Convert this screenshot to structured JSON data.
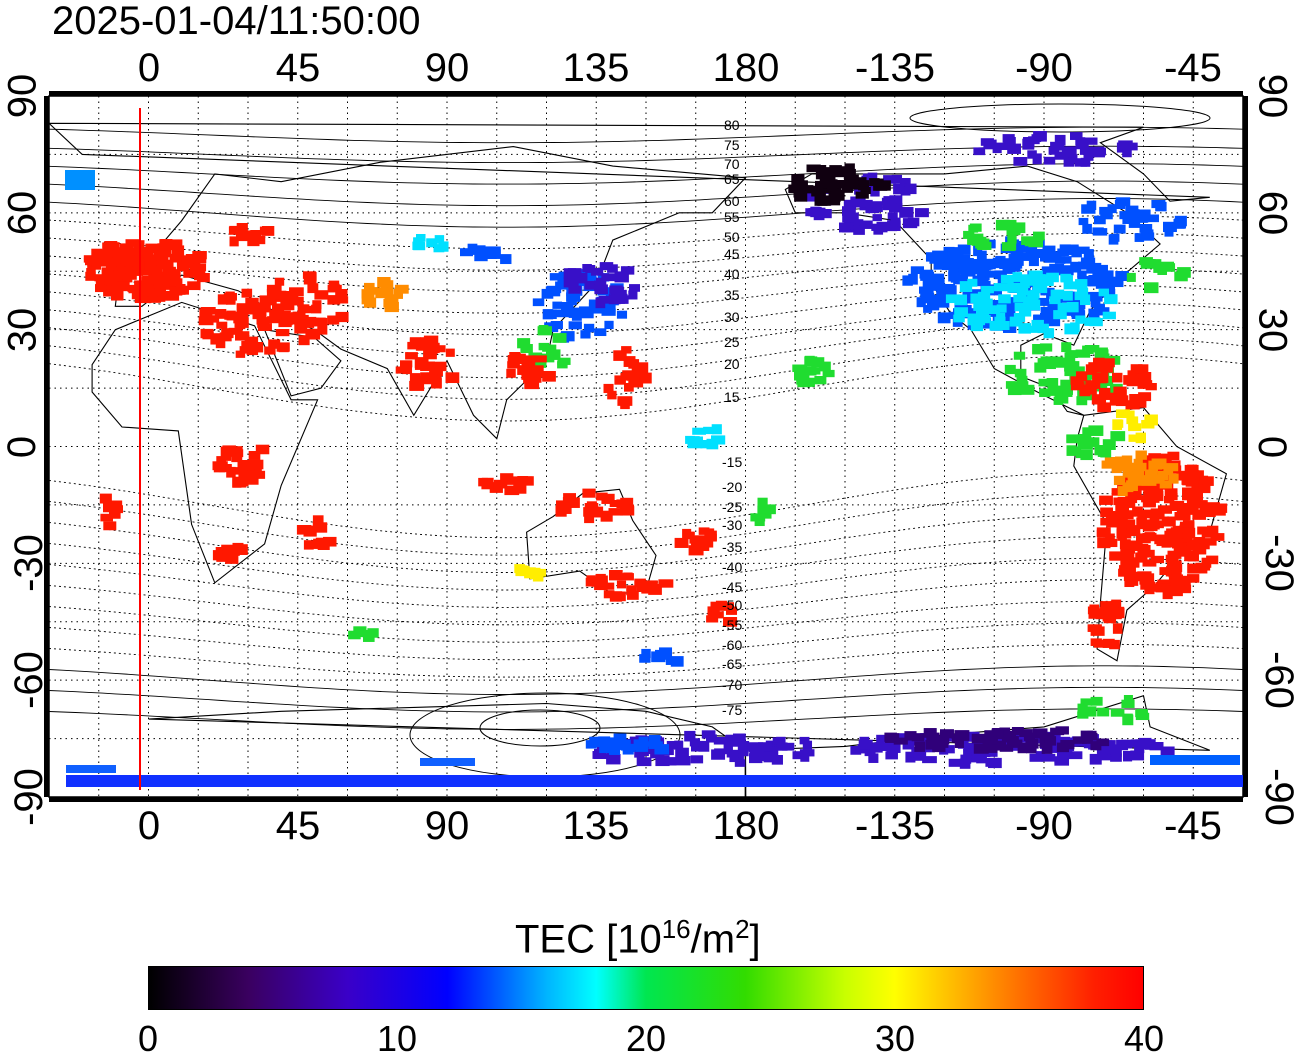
{
  "title": "2025-01-04/11:50:00",
  "longitude_ticks": [
    "0",
    "45",
    "90",
    "135",
    "180",
    "-135",
    "-90",
    "-45"
  ],
  "latitude_ticks": [
    "90",
    "60",
    "30",
    "0",
    "-30",
    "-60",
    "-90"
  ],
  "magnetic_latitude_labels": [
    "80",
    "75",
    "70",
    "65",
    "60",
    "55",
    "50",
    "45",
    "40",
    "35",
    "30",
    "25",
    "20",
    "15",
    "-15",
    "-20",
    "-25",
    "-30",
    "-35",
    "-40",
    "-45",
    "-50",
    "-55",
    "-60",
    "-65",
    "-70",
    "-75"
  ],
  "colorbar": {
    "label_prefix": "TEC  [10",
    "label_exp1": "16",
    "label_mid": "/m",
    "label_exp2": "2",
    "label_suffix": "]",
    "ticks": [
      "0",
      "10",
      "20",
      "30",
      "40"
    ],
    "min": 0,
    "max": 40
  },
  "map": {
    "projection": "equirectangular",
    "longitude_range": "-30 to 330",
    "latitude_range": "-90 to 90",
    "grid": "dotted 15-degree",
    "subsolar_meridian_color": "#ff0000",
    "colormap": [
      "#000000",
      "#3a00c8",
      "#0000ff",
      "#00ffff",
      "#00e650",
      "#ffff00",
      "#ff8c00",
      "#ff0000"
    ]
  }
}
